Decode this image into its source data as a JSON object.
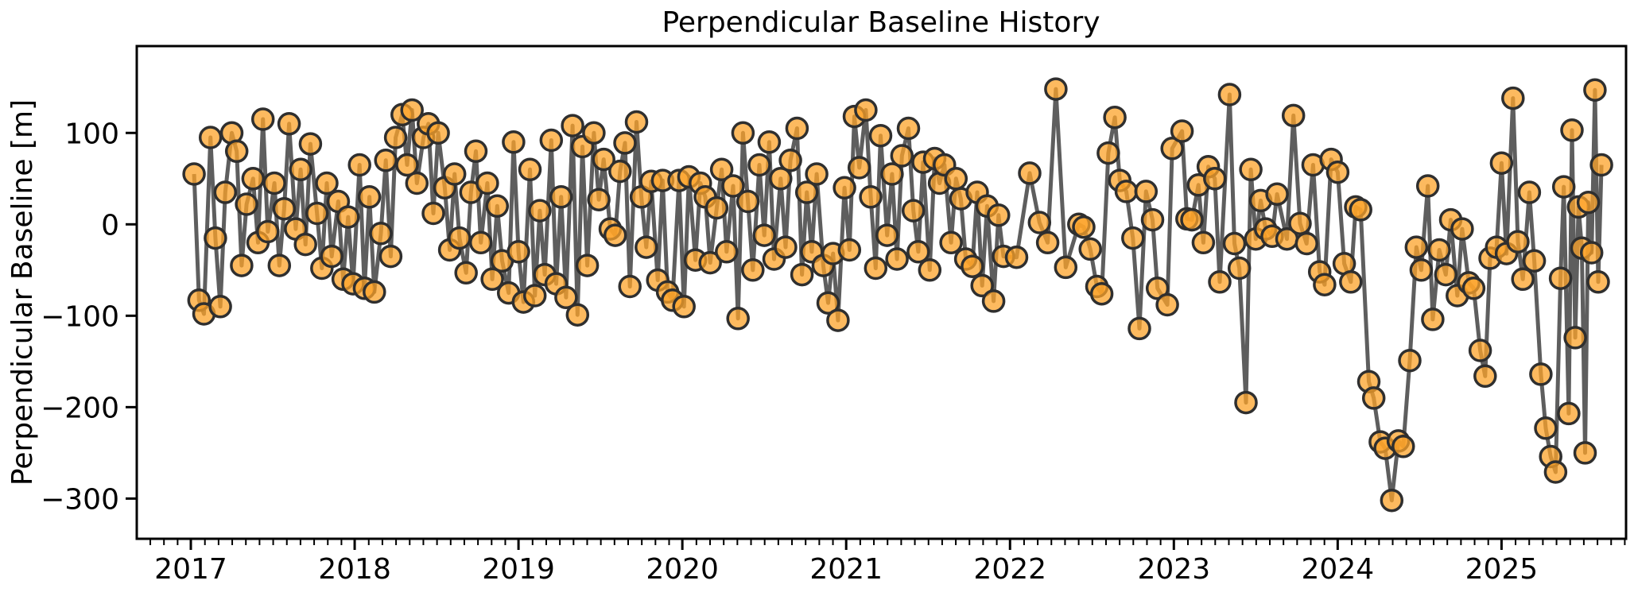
{
  "figure": {
    "title": "Perpendicular Baseline History",
    "background_color": "#ffffff"
  },
  "chart_data": {
    "type": "line",
    "title": "Perpendicular Baseline History",
    "xlabel": "",
    "ylabel": "Perpendicular Baseline [m]",
    "xlim": [
      2016.67,
      2025.76
    ],
    "ylim": [
      -344,
      195
    ],
    "grid": false,
    "legend": null,
    "x_major_ticks": [
      2017,
      2018,
      2019,
      2020,
      2021,
      2022,
      2023,
      2024,
      2025
    ],
    "x_tick_labels": [
      "2017",
      "2018",
      "2019",
      "2020",
      "2021",
      "2022",
      "2023",
      "2024",
      "2025"
    ],
    "x_minor_tick_interval_years": 0.08333,
    "y_ticks": [
      100,
      0,
      -100,
      -200,
      -300
    ],
    "y_tick_labels": [
      "100",
      "0",
      "−100",
      "−200",
      "−300"
    ],
    "style": {
      "line_color": "#4D4D4D",
      "line_width": 5,
      "line_opacity": 0.9,
      "marker_fill": "#FCA32A",
      "marker_edge": "#2F2F2F",
      "marker_edge_width": 3.5,
      "marker_radius": 13,
      "marker_opacity": 0.75,
      "spine_color": "#000000",
      "spine_width": 3,
      "major_tick_length": 14,
      "minor_tick_length": 8
    },
    "series": [
      {
        "name": "perpendicular-baseline",
        "points": [
          [
            2017.02,
            55
          ],
          [
            2017.05,
            -83
          ],
          [
            2017.08,
            -98
          ],
          [
            2017.12,
            95
          ],
          [
            2017.15,
            -15
          ],
          [
            2017.18,
            -90
          ],
          [
            2017.21,
            35
          ],
          [
            2017.25,
            100
          ],
          [
            2017.28,
            80
          ],
          [
            2017.31,
            -45
          ],
          [
            2017.34,
            22
          ],
          [
            2017.38,
            50
          ],
          [
            2017.41,
            -20
          ],
          [
            2017.44,
            115
          ],
          [
            2017.47,
            -8
          ],
          [
            2017.51,
            45
          ],
          [
            2017.54,
            -45
          ],
          [
            2017.57,
            17
          ],
          [
            2017.6,
            110
          ],
          [
            2017.64,
            -5
          ],
          [
            2017.67,
            60
          ],
          [
            2017.7,
            -22
          ],
          [
            2017.73,
            88
          ],
          [
            2017.77,
            12
          ],
          [
            2017.8,
            -48
          ],
          [
            2017.83,
            45
          ],
          [
            2017.86,
            -35
          ],
          [
            2017.9,
            25
          ],
          [
            2017.93,
            -60
          ],
          [
            2017.96,
            8
          ],
          [
            2017.99,
            -65
          ],
          [
            2018.03,
            65
          ],
          [
            2018.06,
            -70
          ],
          [
            2018.09,
            30
          ],
          [
            2018.12,
            -74
          ],
          [
            2018.16,
            -10
          ],
          [
            2018.19,
            70
          ],
          [
            2018.22,
            -35
          ],
          [
            2018.25,
            95
          ],
          [
            2018.29,
            120
          ],
          [
            2018.32,
            65
          ],
          [
            2018.35,
            125
          ],
          [
            2018.38,
            45
          ],
          [
            2018.42,
            95
          ],
          [
            2018.45,
            110
          ],
          [
            2018.48,
            12
          ],
          [
            2018.51,
            100
          ],
          [
            2018.55,
            40
          ],
          [
            2018.58,
            -28
          ],
          [
            2018.61,
            55
          ],
          [
            2018.64,
            -15
          ],
          [
            2018.68,
            -53
          ],
          [
            2018.71,
            35
          ],
          [
            2018.74,
            80
          ],
          [
            2018.77,
            -20
          ],
          [
            2018.81,
            45
          ],
          [
            2018.84,
            -60
          ],
          [
            2018.87,
            20
          ],
          [
            2018.9,
            -40
          ],
          [
            2018.94,
            -75
          ],
          [
            2018.97,
            90
          ],
          [
            2019.0,
            -30
          ],
          [
            2019.03,
            -85
          ],
          [
            2019.07,
            60
          ],
          [
            2019.1,
            -78
          ],
          [
            2019.13,
            15
          ],
          [
            2019.16,
            -55
          ],
          [
            2019.2,
            92
          ],
          [
            2019.23,
            -65
          ],
          [
            2019.26,
            30
          ],
          [
            2019.29,
            -80
          ],
          [
            2019.33,
            108
          ],
          [
            2019.36,
            -99
          ],
          [
            2019.39,
            85
          ],
          [
            2019.42,
            -45
          ],
          [
            2019.46,
            100
          ],
          [
            2019.49,
            27
          ],
          [
            2019.52,
            71
          ],
          [
            2019.56,
            -5
          ],
          [
            2019.59,
            -12
          ],
          [
            2019.62,
            58
          ],
          [
            2019.65,
            89
          ],
          [
            2019.68,
            -68
          ],
          [
            2019.72,
            112
          ],
          [
            2019.75,
            30
          ],
          [
            2019.78,
            -25
          ],
          [
            2019.81,
            47
          ],
          [
            2019.85,
            -61
          ],
          [
            2019.88,
            48
          ],
          [
            2019.91,
            -74
          ],
          [
            2019.94,
            -83
          ],
          [
            2019.98,
            48
          ],
          [
            2020.01,
            -90
          ],
          [
            2020.04,
            52
          ],
          [
            2020.08,
            -39
          ],
          [
            2020.11,
            45
          ],
          [
            2020.14,
            30
          ],
          [
            2020.17,
            -42
          ],
          [
            2020.21,
            18
          ],
          [
            2020.24,
            60
          ],
          [
            2020.27,
            -30
          ],
          [
            2020.31,
            42
          ],
          [
            2020.34,
            -103
          ],
          [
            2020.37,
            100
          ],
          [
            2020.4,
            25
          ],
          [
            2020.43,
            -50
          ],
          [
            2020.47,
            65
          ],
          [
            2020.5,
            -12
          ],
          [
            2020.53,
            90
          ],
          [
            2020.56,
            -38
          ],
          [
            2020.6,
            50
          ],
          [
            2020.63,
            -25
          ],
          [
            2020.66,
            70
          ],
          [
            2020.7,
            105
          ],
          [
            2020.73,
            -55
          ],
          [
            2020.76,
            35
          ],
          [
            2020.79,
            -30
          ],
          [
            2020.82,
            55
          ],
          [
            2020.86,
            -45
          ],
          [
            2020.89,
            -86
          ],
          [
            2020.92,
            -32
          ],
          [
            2020.95,
            -105
          ],
          [
            2020.99,
            40
          ],
          [
            2021.02,
            -28
          ],
          [
            2021.05,
            118
          ],
          [
            2021.08,
            62
          ],
          [
            2021.12,
            125
          ],
          [
            2021.15,
            30
          ],
          [
            2021.18,
            -48
          ],
          [
            2021.21,
            97
          ],
          [
            2021.25,
            -12
          ],
          [
            2021.28,
            55
          ],
          [
            2021.31,
            -38
          ],
          [
            2021.34,
            75
          ],
          [
            2021.38,
            105
          ],
          [
            2021.41,
            15
          ],
          [
            2021.44,
            -30
          ],
          [
            2021.47,
            68
          ],
          [
            2021.51,
            -50
          ],
          [
            2021.54,
            72
          ],
          [
            2021.57,
            45
          ],
          [
            2021.6,
            65
          ],
          [
            2021.64,
            -20
          ],
          [
            2021.67,
            50
          ],
          [
            2021.7,
            28
          ],
          [
            2021.73,
            -38
          ],
          [
            2021.77,
            -46
          ],
          [
            2021.8,
            35
          ],
          [
            2021.83,
            -67
          ],
          [
            2021.86,
            20
          ],
          [
            2021.9,
            -84
          ],
          [
            2021.93,
            10
          ],
          [
            2021.96,
            -35
          ],
          [
            2022.04,
            -36
          ],
          [
            2022.12,
            56
          ],
          [
            2022.18,
            2
          ],
          [
            2022.23,
            -20
          ],
          [
            2022.28,
            148
          ],
          [
            2022.34,
            -47
          ],
          [
            2022.42,
            0
          ],
          [
            2022.45,
            -3
          ],
          [
            2022.49,
            -27
          ],
          [
            2022.53,
            -68
          ],
          [
            2022.56,
            -76
          ],
          [
            2022.6,
            78
          ],
          [
            2022.64,
            117
          ],
          [
            2022.67,
            48
          ],
          [
            2022.71,
            36
          ],
          [
            2022.75,
            -15
          ],
          [
            2022.79,
            -114
          ],
          [
            2022.83,
            36
          ],
          [
            2022.87,
            5
          ],
          [
            2022.9,
            -70
          ],
          [
            2022.96,
            -88
          ],
          [
            2022.99,
            83
          ],
          [
            2023.05,
            102
          ],
          [
            2023.08,
            6
          ],
          [
            2023.11,
            5
          ],
          [
            2023.15,
            43
          ],
          [
            2023.18,
            -20
          ],
          [
            2023.21,
            63
          ],
          [
            2023.25,
            50
          ],
          [
            2023.28,
            -63
          ],
          [
            2023.34,
            142
          ],
          [
            2023.37,
            -21
          ],
          [
            2023.4,
            -48
          ],
          [
            2023.44,
            -195
          ],
          [
            2023.47,
            60
          ],
          [
            2023.5,
            -16
          ],
          [
            2023.53,
            26
          ],
          [
            2023.56,
            -5
          ],
          [
            2023.6,
            -13
          ],
          [
            2023.63,
            33
          ],
          [
            2023.69,
            -16
          ],
          [
            2023.73,
            119
          ],
          [
            2023.77,
            1
          ],
          [
            2023.81,
            -21
          ],
          [
            2023.85,
            65
          ],
          [
            2023.89,
            -52
          ],
          [
            2023.92,
            -66
          ],
          [
            2023.96,
            71
          ],
          [
            2024.0,
            57
          ],
          [
            2024.04,
            -43
          ],
          [
            2024.08,
            -63
          ],
          [
            2024.11,
            19
          ],
          [
            2024.14,
            16
          ],
          [
            2024.19,
            -172
          ],
          [
            2024.22,
            -190
          ],
          [
            2024.26,
            -238
          ],
          [
            2024.29,
            -245
          ],
          [
            2024.33,
            -302
          ],
          [
            2024.37,
            -237
          ],
          [
            2024.4,
            -243
          ],
          [
            2024.44,
            -149
          ],
          [
            2024.48,
            -25
          ],
          [
            2024.51,
            -50
          ],
          [
            2024.55,
            42
          ],
          [
            2024.58,
            -104
          ],
          [
            2024.62,
            -28
          ],
          [
            2024.66,
            -55
          ],
          [
            2024.69,
            5
          ],
          [
            2024.73,
            -78
          ],
          [
            2024.76,
            -5
          ],
          [
            2024.8,
            -64
          ],
          [
            2024.83,
            -70
          ],
          [
            2024.87,
            -138
          ],
          [
            2024.9,
            -166
          ],
          [
            2024.93,
            -37
          ],
          [
            2024.97,
            -25
          ],
          [
            2025.0,
            67
          ],
          [
            2025.03,
            -32
          ],
          [
            2025.07,
            138
          ],
          [
            2025.1,
            -19
          ],
          [
            2025.13,
            -60
          ],
          [
            2025.17,
            35
          ],
          [
            2025.2,
            -40
          ],
          [
            2025.24,
            -164
          ],
          [
            2025.27,
            -223
          ],
          [
            2025.3,
            -254
          ],
          [
            2025.33,
            -271
          ],
          [
            2025.36,
            -59
          ],
          [
            2025.38,
            41
          ],
          [
            2025.41,
            -207
          ],
          [
            2025.43,
            103
          ],
          [
            2025.45,
            -124
          ],
          [
            2025.47,
            19
          ],
          [
            2025.49,
            -26
          ],
          [
            2025.51,
            -250
          ],
          [
            2025.53,
            24
          ],
          [
            2025.55,
            -31
          ],
          [
            2025.57,
            147
          ],
          [
            2025.59,
            -63
          ],
          [
            2025.61,
            65
          ]
        ]
      }
    ]
  }
}
